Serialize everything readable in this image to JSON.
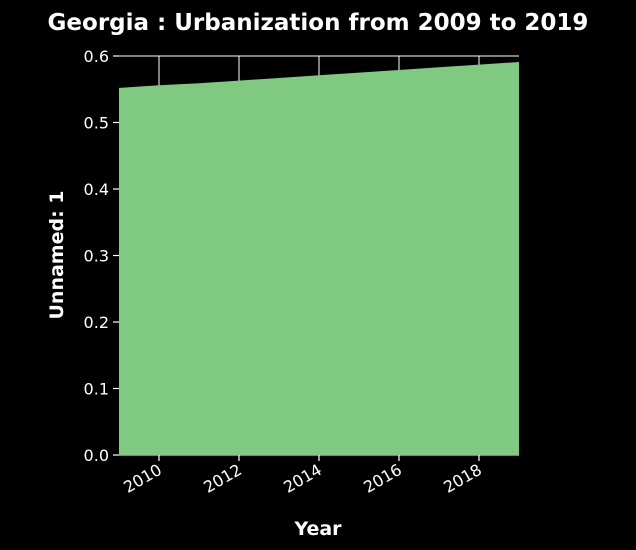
{
  "chart_data": {
    "type": "area",
    "title": "Georgia : Urbanization from 2009 to 2019",
    "xlabel": "Year",
    "ylabel": "Unnamed: 1",
    "x": [
      2009,
      2010,
      2011,
      2012,
      2013,
      2014,
      2015,
      2016,
      2017,
      2018,
      2019
    ],
    "series": [
      {
        "values": [
          0.552,
          0.556,
          0.559,
          0.563,
          0.567,
          0.571,
          0.575,
          0.579,
          0.583,
          0.587,
          0.591
        ]
      }
    ],
    "xlim": [
      2009,
      2019
    ],
    "ylim": [
      0,
      0.6
    ],
    "xticks": [
      2010,
      2012,
      2014,
      2016,
      2018
    ],
    "yticks": [
      "0.0",
      "0.1",
      "0.2",
      "0.3",
      "0.4",
      "0.5",
      "0.6"
    ],
    "grid": true,
    "colors": {
      "background": "#000000",
      "area": "#80c980",
      "text": "#ffffff"
    }
  }
}
